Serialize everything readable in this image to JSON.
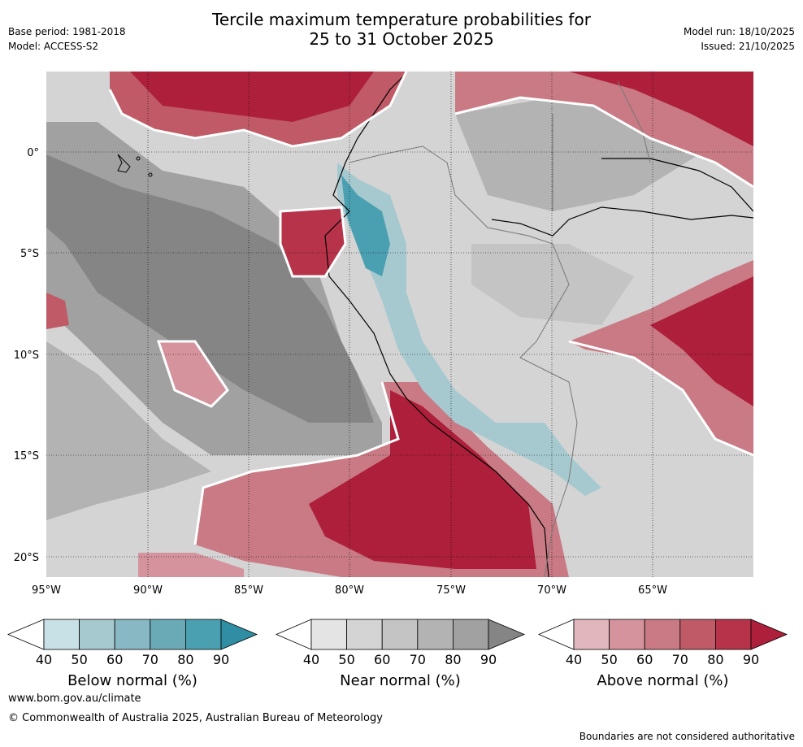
{
  "header": {
    "title_line1": "Tercile maximum temperature probabilities for",
    "title_line2": "25 to 31 October 2025",
    "base_period": "Base period: 1981-2018",
    "model": "Model: ACCESS-S2",
    "model_run": "Model run: 18/10/2025",
    "issued": "Issued: 21/10/2025"
  },
  "map": {
    "lat_labels": [
      "0°",
      "5°S",
      "10°S",
      "15°S",
      "20°S"
    ],
    "lon_labels": [
      "95°W",
      "90°W",
      "85°W",
      "80°W",
      "75°W",
      "70°W",
      "65°W"
    ]
  },
  "colorbars": [
    {
      "label": "Below normal (%)",
      "ticks": [
        "40",
        "50",
        "60",
        "70",
        "80",
        "90"
      ],
      "colors": [
        "#ffffff",
        "#c8e1e6",
        "#a6c9cf",
        "#88b8c3",
        "#6aaab7",
        "#4aa0b1",
        "#2f8ea3"
      ]
    },
    {
      "label": "Near normal (%)",
      "ticks": [
        "40",
        "50",
        "60",
        "70",
        "80",
        "90"
      ],
      "colors": [
        "#ffffff",
        "#e4e4e4",
        "#d4d4d4",
        "#c4c4c4",
        "#b3b3b3",
        "#a1a1a1",
        "#858585"
      ]
    },
    {
      "label": "Above normal (%)",
      "ticks": [
        "40",
        "50",
        "60",
        "70",
        "80",
        "90"
      ],
      "colors": [
        "#ffffff",
        "#e1b7bd",
        "#d4939d",
        "#c97a84",
        "#c05a67",
        "#b7334a",
        "#ad1f3b"
      ]
    }
  ],
  "footer": {
    "website": "www.bom.gov.au/climate",
    "copyright": "© Commonwealth of Australia 2025, Australian Bureau of Meteorology",
    "disclaimer": "Boundaries are not considered authoritative"
  }
}
